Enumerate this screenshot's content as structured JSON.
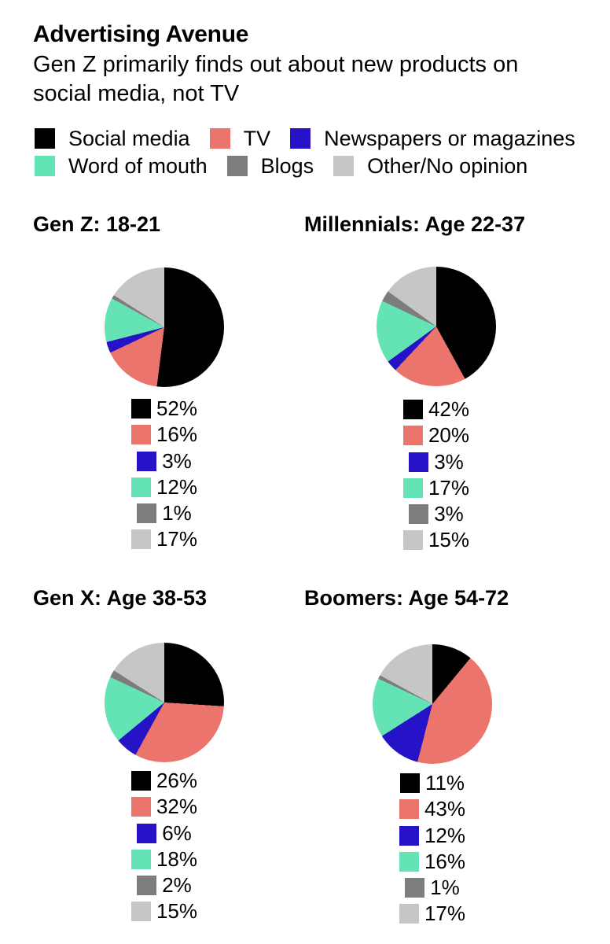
{
  "palette": [
    "#000000",
    "#EB756C",
    "#2613C8",
    "#64E3B4",
    "#7D7D7D",
    "#C6C6C6"
  ],
  "header": {
    "title": "Advertising Avenue",
    "subtitle": "Gen Z primarily finds out about new products on social media, not TV"
  },
  "legend": {
    "labels": [
      "Social media",
      "TV",
      "Newspapers or magazines",
      "Word of mouth",
      "Blogs",
      "Other/No opinion"
    ]
  },
  "chart_data": [
    {
      "type": "pie",
      "title": "Gen Z: 18-21",
      "categories": [
        "Social media",
        "TV",
        "Newspapers or magazines",
        "Word of mouth",
        "Blogs",
        "Other/No opinion"
      ],
      "values": [
        52,
        16,
        3,
        12,
        1,
        17
      ],
      "labels": [
        "52%",
        "16%",
        "3%",
        "12%",
        "1%",
        "17%"
      ],
      "start_angle": "12 o'clock",
      "direction": "clockwise",
      "legend_position": "below"
    },
    {
      "type": "pie",
      "title": "Millennials: Age 22-37",
      "categories": [
        "Social media",
        "TV",
        "Newspapers or magazines",
        "Word of mouth",
        "Blogs",
        "Other/No opinion"
      ],
      "values": [
        42,
        20,
        3,
        17,
        3,
        15
      ],
      "labels": [
        "42%",
        "20%",
        "3%",
        "17%",
        "3%",
        "15%"
      ],
      "start_angle": "12 o'clock",
      "direction": "clockwise",
      "legend_position": "below"
    },
    {
      "type": "pie",
      "title": "Gen X: Age 38-53",
      "categories": [
        "Social media",
        "TV",
        "Newspapers or magazines",
        "Word of mouth",
        "Blogs",
        "Other/No opinion"
      ],
      "values": [
        26,
        32,
        6,
        18,
        2,
        15
      ],
      "labels": [
        "26%",
        "32%",
        "6%",
        "18%",
        "2%",
        "15%"
      ],
      "start_angle": "12 o'clock",
      "direction": "clockwise",
      "legend_position": "below"
    },
    {
      "type": "pie",
      "title": "Boomers: Age 54-72",
      "categories": [
        "Social media",
        "TV",
        "Newspapers or magazines",
        "Word of mouth",
        "Blogs",
        "Other/No opinion"
      ],
      "values": [
        11,
        43,
        12,
        16,
        1,
        17
      ],
      "labels": [
        "11%",
        "43%",
        "12%",
        "16%",
        "1%",
        "17%"
      ],
      "start_angle": "12 o'clock",
      "direction": "clockwise",
      "legend_position": "below"
    }
  ]
}
